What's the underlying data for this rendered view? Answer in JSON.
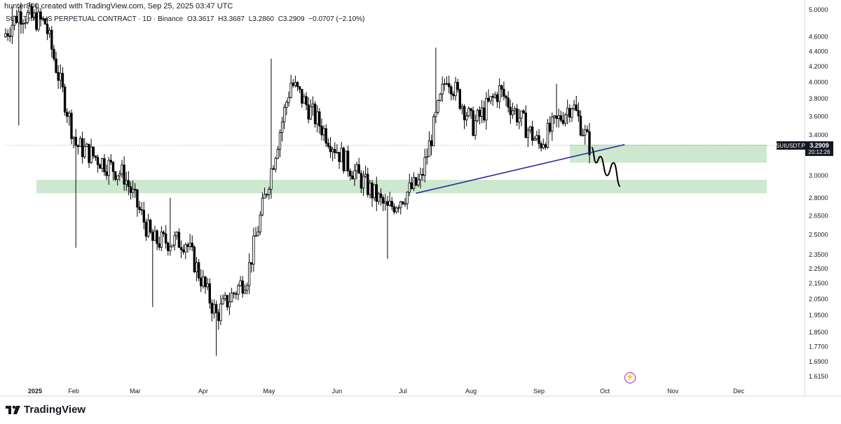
{
  "header": {
    "credit": "hunter800 created with TradingView.com, Sep 25, 2025 03:47 UTC",
    "symbol": "SUI / TetherUS PERPETUAL CONTRACT · 1D · Binance",
    "open": "O3.3617",
    "high": "H3.3687",
    "low": "L3.2860",
    "close": "C3.2909",
    "change": "−0.0707 (−2.10%)"
  },
  "price_tag": {
    "ticker": "SUIUSDT.P",
    "price": "3.2909",
    "countdown": "20:12:26"
  },
  "footer": {
    "logo_text": "TradingView",
    "event_icon": "lightning-bolt-icon"
  },
  "colors": {
    "candle": "#000000",
    "zone": "#c8e6c9",
    "trendline": "#2a2aa0",
    "projection": "#000000",
    "event": "#9c27b0"
  },
  "chart_data": {
    "type": "candlestick",
    "y_scale": "log",
    "ylim": [
      1.58,
      5.0
    ],
    "y_ticks": [
      "5.0000",
      "4.6000",
      "4.4000",
      "4.2000",
      "4.0000",
      "3.8000",
      "3.6000",
      "3.4000",
      "3.0000",
      "2.8000",
      "2.6500",
      "2.5000",
      "2.3500",
      "2.2500",
      "2.1500",
      "2.0500",
      "1.9500",
      "1.8500",
      "1.7700",
      "1.6900",
      "1.6150"
    ],
    "x_ticks": [
      "2025",
      "Feb",
      "Mar",
      "Apr",
      "May",
      "Jun",
      "Jul",
      "Aug",
      "Sep",
      "Oct",
      "Nov",
      "Dec"
    ],
    "last_price": 3.2909,
    "segments": [
      {
        "from": "2025-01-01",
        "to": "2025-01-08",
        "start": 4.6,
        "end": 4.95,
        "hi": 5.05,
        "lo": 3.5
      },
      {
        "from": "2025-01-08",
        "to": "2025-01-20",
        "start": 4.95,
        "end": 4.8
      },
      {
        "from": "2025-01-20",
        "to": "2025-02-03",
        "start": 4.8,
        "end": 3.3,
        "lo": 2.4
      },
      {
        "from": "2025-02-03",
        "to": "2025-02-25",
        "start": 3.3,
        "end": 3.0
      },
      {
        "from": "2025-02-25",
        "to": "2025-03-10",
        "start": 3.0,
        "end": 2.45,
        "lo": 2.0
      },
      {
        "from": "2025-03-10",
        "to": "2025-03-25",
        "start": 2.45,
        "end": 2.45,
        "hi": 2.8
      },
      {
        "from": "2025-03-25",
        "to": "2025-04-08",
        "start": 2.45,
        "end": 1.95,
        "lo": 1.72
      },
      {
        "from": "2025-04-08",
        "to": "2025-04-22",
        "start": 1.95,
        "end": 2.2
      },
      {
        "from": "2025-04-22",
        "to": "2025-05-12",
        "start": 2.2,
        "end": 4.0,
        "hi": 4.3
      },
      {
        "from": "2025-05-12",
        "to": "2025-06-05",
        "start": 4.0,
        "end": 3.15
      },
      {
        "from": "2025-06-05",
        "to": "2025-06-25",
        "start": 3.15,
        "end": 2.7,
        "lo": 2.32
      },
      {
        "from": "2025-06-25",
        "to": "2025-07-10",
        "start": 2.7,
        "end": 2.95
      },
      {
        "from": "2025-07-10",
        "to": "2025-07-22",
        "start": 2.95,
        "end": 4.1,
        "hi": 4.45
      },
      {
        "from": "2025-07-22",
        "to": "2025-08-03",
        "start": 4.1,
        "end": 3.5
      },
      {
        "from": "2025-08-03",
        "to": "2025-08-15",
        "start": 3.5,
        "end": 3.9
      },
      {
        "from": "2025-08-15",
        "to": "2025-09-02",
        "start": 3.9,
        "end": 3.3
      },
      {
        "from": "2025-09-02",
        "to": "2025-09-17",
        "start": 3.3,
        "end": 3.75,
        "hi": 3.98
      },
      {
        "from": "2025-09-17",
        "to": "2025-09-25",
        "start": 3.75,
        "end": 3.29
      }
    ],
    "annotations": [
      {
        "type": "zone",
        "from": "2025-01-01",
        "to": "2025-12-31",
        "lo": 2.84,
        "hi": 2.96
      },
      {
        "type": "zone",
        "from": "2025-09-01",
        "to": "2025-12-31",
        "lo": 3.12,
        "hi": 3.3
      },
      {
        "type": "trendline",
        "from": "2025-07-07",
        "from_price": 2.84,
        "to": "2025-10-10",
        "to_price": 3.3
      },
      {
        "type": "path",
        "points": [
          [
            "2025-09-25",
            3.27
          ],
          [
            "2025-09-27",
            3.12
          ],
          [
            "2025-09-29",
            3.18
          ],
          [
            "2025-10-02",
            3.0
          ],
          [
            "2025-10-05",
            3.12
          ],
          [
            "2025-10-08",
            2.9
          ]
        ]
      },
      {
        "type": "hline",
        "price": 3.2909,
        "style": "dotted"
      }
    ]
  }
}
